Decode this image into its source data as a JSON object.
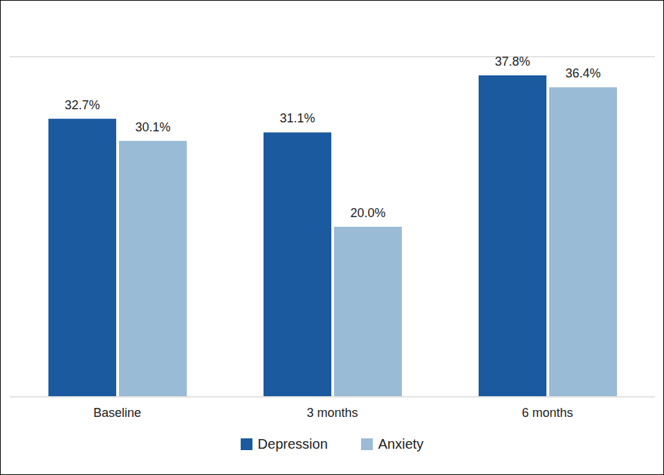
{
  "chart_data": {
    "type": "bar",
    "categories": [
      "Baseline",
      "3 months",
      "6 months"
    ],
    "series": [
      {
        "name": "Depression",
        "color": "#1b5a9f",
        "values": [
          32.7,
          31.1,
          37.8
        ],
        "value_labels": [
          "32.7%",
          "31.1%",
          "37.8%"
        ]
      },
      {
        "name": "Anxiety",
        "color": "#9abbd6",
        "values": [
          30.1,
          20.0,
          36.4
        ],
        "value_labels": [
          "30.1%",
          "20.0%",
          "36.4%"
        ]
      }
    ],
    "ylim": [
      0,
      40
    ],
    "yticks": [
      0,
      5,
      10,
      15,
      20,
      25,
      30,
      35,
      40
    ],
    "grid": true,
    "data_labels": true,
    "tick_labels": "x",
    "legend": "bottom"
  }
}
